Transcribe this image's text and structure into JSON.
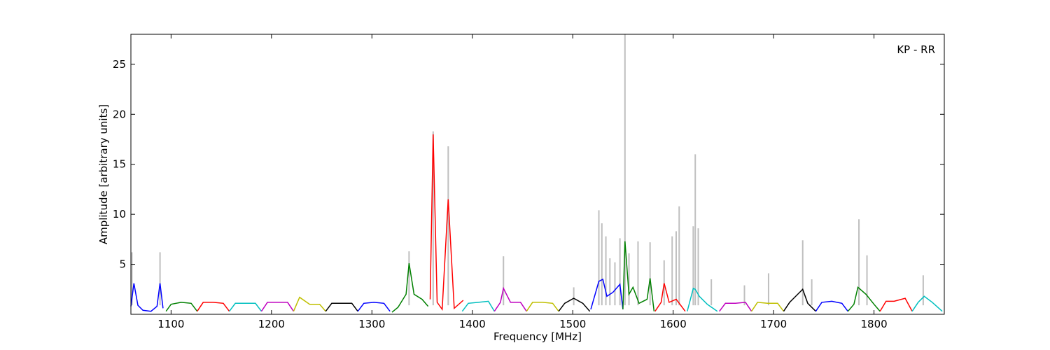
{
  "chart_data": {
    "type": "line",
    "title": "",
    "xlabel": "Frequency [MHz]",
    "ylabel": "Amplitude [arbitrary units]",
    "annotation": "KP - RR",
    "xlim": [
      1060,
      1870
    ],
    "ylim": [
      0,
      28
    ],
    "xticks": [
      1100,
      1200,
      1300,
      1400,
      1500,
      1600,
      1700,
      1800
    ],
    "yticks": [
      5,
      10,
      15,
      20,
      25
    ],
    "grid": false,
    "legend": "none",
    "raw": {
      "color": "#bfbfbf",
      "spikes": [
        [
          1061,
          6.2
        ],
        [
          1089,
          6.2
        ],
        [
          1337,
          6.3
        ],
        [
          1361,
          18.3
        ],
        [
          1376,
          16.8
        ],
        [
          1431,
          5.8
        ],
        [
          1501,
          2.7
        ],
        [
          1526,
          10.4
        ],
        [
          1529,
          9.1
        ],
        [
          1533,
          7.8
        ],
        [
          1537,
          5.6
        ],
        [
          1542,
          5.2
        ],
        [
          1547,
          7.6
        ],
        [
          1552,
          28
        ],
        [
          1556,
          6.1
        ],
        [
          1565,
          7.3
        ],
        [
          1577,
          7.2
        ],
        [
          1591,
          5.4
        ],
        [
          1599,
          7.8
        ],
        [
          1603,
          8.3
        ],
        [
          1606,
          10.8
        ],
        [
          1620,
          8.8
        ],
        [
          1622,
          16.0
        ],
        [
          1625,
          8.6
        ],
        [
          1638,
          3.5
        ],
        [
          1671,
          2.9
        ],
        [
          1695,
          4.1
        ],
        [
          1729,
          7.4
        ],
        [
          1738,
          3.5
        ],
        [
          1785,
          9.5
        ],
        [
          1793,
          5.9
        ],
        [
          1849,
          3.9
        ]
      ]
    },
    "subbands": [
      {
        "color": "#0000ff",
        "x": [
          1060,
          1063,
          1067,
          1072,
          1080,
          1086,
          1089,
          1092
        ],
        "y": [
          0.8,
          3.1,
          0.9,
          0.4,
          0.3,
          0.8,
          3.1,
          0.6
        ]
      },
      {
        "color": "#008000",
        "x": [
          1095,
          1100,
          1110,
          1120,
          1126
        ],
        "y": [
          0.3,
          1.0,
          1.2,
          1.1,
          0.3
        ]
      },
      {
        "color": "#ff0000",
        "x": [
          1126,
          1132,
          1142,
          1152,
          1158
        ],
        "y": [
          0.3,
          1.2,
          1.2,
          1.1,
          0.3
        ]
      },
      {
        "color": "#00bfbf",
        "x": [
          1158,
          1164,
          1174,
          1184,
          1190
        ],
        "y": [
          0.3,
          1.1,
          1.1,
          1.1,
          0.3
        ]
      },
      {
        "color": "#bf00bf",
        "x": [
          1190,
          1196,
          1206,
          1216,
          1222
        ],
        "y": [
          0.3,
          1.2,
          1.2,
          1.2,
          0.3
        ]
      },
      {
        "color": "#bfbf00",
        "x": [
          1222,
          1228,
          1238,
          1248,
          1254
        ],
        "y": [
          0.3,
          1.7,
          1.0,
          1.0,
          0.3
        ]
      },
      {
        "color": "#000000",
        "x": [
          1254,
          1260,
          1270,
          1280,
          1286
        ],
        "y": [
          0.3,
          1.1,
          1.1,
          1.1,
          0.3
        ]
      },
      {
        "color": "#0000ff",
        "x": [
          1286,
          1292,
          1302,
          1312,
          1318
        ],
        "y": [
          0.3,
          1.1,
          1.2,
          1.1,
          0.3
        ]
      },
      {
        "color": "#008000",
        "x": [
          1320,
          1326,
          1334,
          1337,
          1342,
          1350,
          1356
        ],
        "y": [
          0.2,
          0.7,
          2.0,
          5.1,
          2.0,
          1.5,
          0.8
        ]
      },
      {
        "color": "#ff0000",
        "x": [
          1358,
          1361,
          1365,
          1370,
          1376,
          1382,
          1391
        ],
        "y": [
          1.5,
          18.0,
          1.2,
          0.5,
          11.5,
          0.6,
          1.4
        ]
      },
      {
        "color": "#00bfbf",
        "x": [
          1390,
          1396,
          1406,
          1416,
          1422
        ],
        "y": [
          0.3,
          1.1,
          1.2,
          1.3,
          0.3
        ]
      },
      {
        "color": "#bf00bf",
        "x": [
          1422,
          1428,
          1431,
          1438,
          1448,
          1454
        ],
        "y": [
          0.3,
          1.2,
          2.6,
          1.2,
          1.2,
          0.3
        ]
      },
      {
        "color": "#bfbf00",
        "x": [
          1454,
          1460,
          1470,
          1480,
          1486
        ],
        "y": [
          0.3,
          1.2,
          1.2,
          1.1,
          0.3
        ]
      },
      {
        "color": "#000000",
        "x": [
          1486,
          1492,
          1501,
          1510,
          1517
        ],
        "y": [
          0.3,
          1.1,
          1.6,
          1.1,
          0.3
        ]
      },
      {
        "color": "#0000ff",
        "x": [
          1518,
          1526,
          1530,
          1534,
          1540,
          1547,
          1550
        ],
        "y": [
          0.5,
          3.3,
          3.5,
          1.8,
          2.2,
          3.0,
          0.5
        ]
      },
      {
        "color": "#008000",
        "x": [
          1550,
          1552,
          1556,
          1560,
          1566,
          1574,
          1577,
          1581
        ],
        "y": [
          0.5,
          7.3,
          2.0,
          2.7,
          1.1,
          1.5,
          3.6,
          0.3
        ]
      },
      {
        "color": "#ff0000",
        "x": [
          1582,
          1588,
          1591,
          1596,
          1603,
          1612
        ],
        "y": [
          0.3,
          1.2,
          3.1,
          1.2,
          1.5,
          0.3
        ]
      },
      {
        "color": "#00bfbf",
        "x": [
          1614,
          1620,
          1622,
          1626,
          1634,
          1644
        ],
        "y": [
          0.3,
          2.6,
          2.5,
          1.8,
          1.0,
          0.3
        ]
      },
      {
        "color": "#bf00bf",
        "x": [
          1646,
          1652,
          1662,
          1672,
          1678
        ],
        "y": [
          0.3,
          1.1,
          1.1,
          1.2,
          0.3
        ]
      },
      {
        "color": "#bfbf00",
        "x": [
          1678,
          1684,
          1694,
          1704,
          1710
        ],
        "y": [
          0.3,
          1.2,
          1.1,
          1.1,
          0.3
        ]
      },
      {
        "color": "#000000",
        "x": [
          1710,
          1716,
          1729,
          1734,
          1742
        ],
        "y": [
          0.3,
          1.2,
          2.5,
          1.1,
          0.3
        ]
      },
      {
        "color": "#0000ff",
        "x": [
          1742,
          1748,
          1758,
          1768,
          1774
        ],
        "y": [
          0.3,
          1.2,
          1.3,
          1.1,
          0.3
        ]
      },
      {
        "color": "#008000",
        "x": [
          1774,
          1780,
          1784,
          1792,
          1800,
          1806
        ],
        "y": [
          0.3,
          1.0,
          2.7,
          2.0,
          1.0,
          0.3
        ]
      },
      {
        "color": "#ff0000",
        "x": [
          1806,
          1812,
          1820,
          1831,
          1838
        ],
        "y": [
          0.3,
          1.3,
          1.3,
          1.6,
          0.3
        ]
      },
      {
        "color": "#00bfbf",
        "x": [
          1838,
          1844,
          1850,
          1858,
          1868
        ],
        "y": [
          0.3,
          1.2,
          1.8,
          1.2,
          0.3
        ]
      }
    ]
  }
}
